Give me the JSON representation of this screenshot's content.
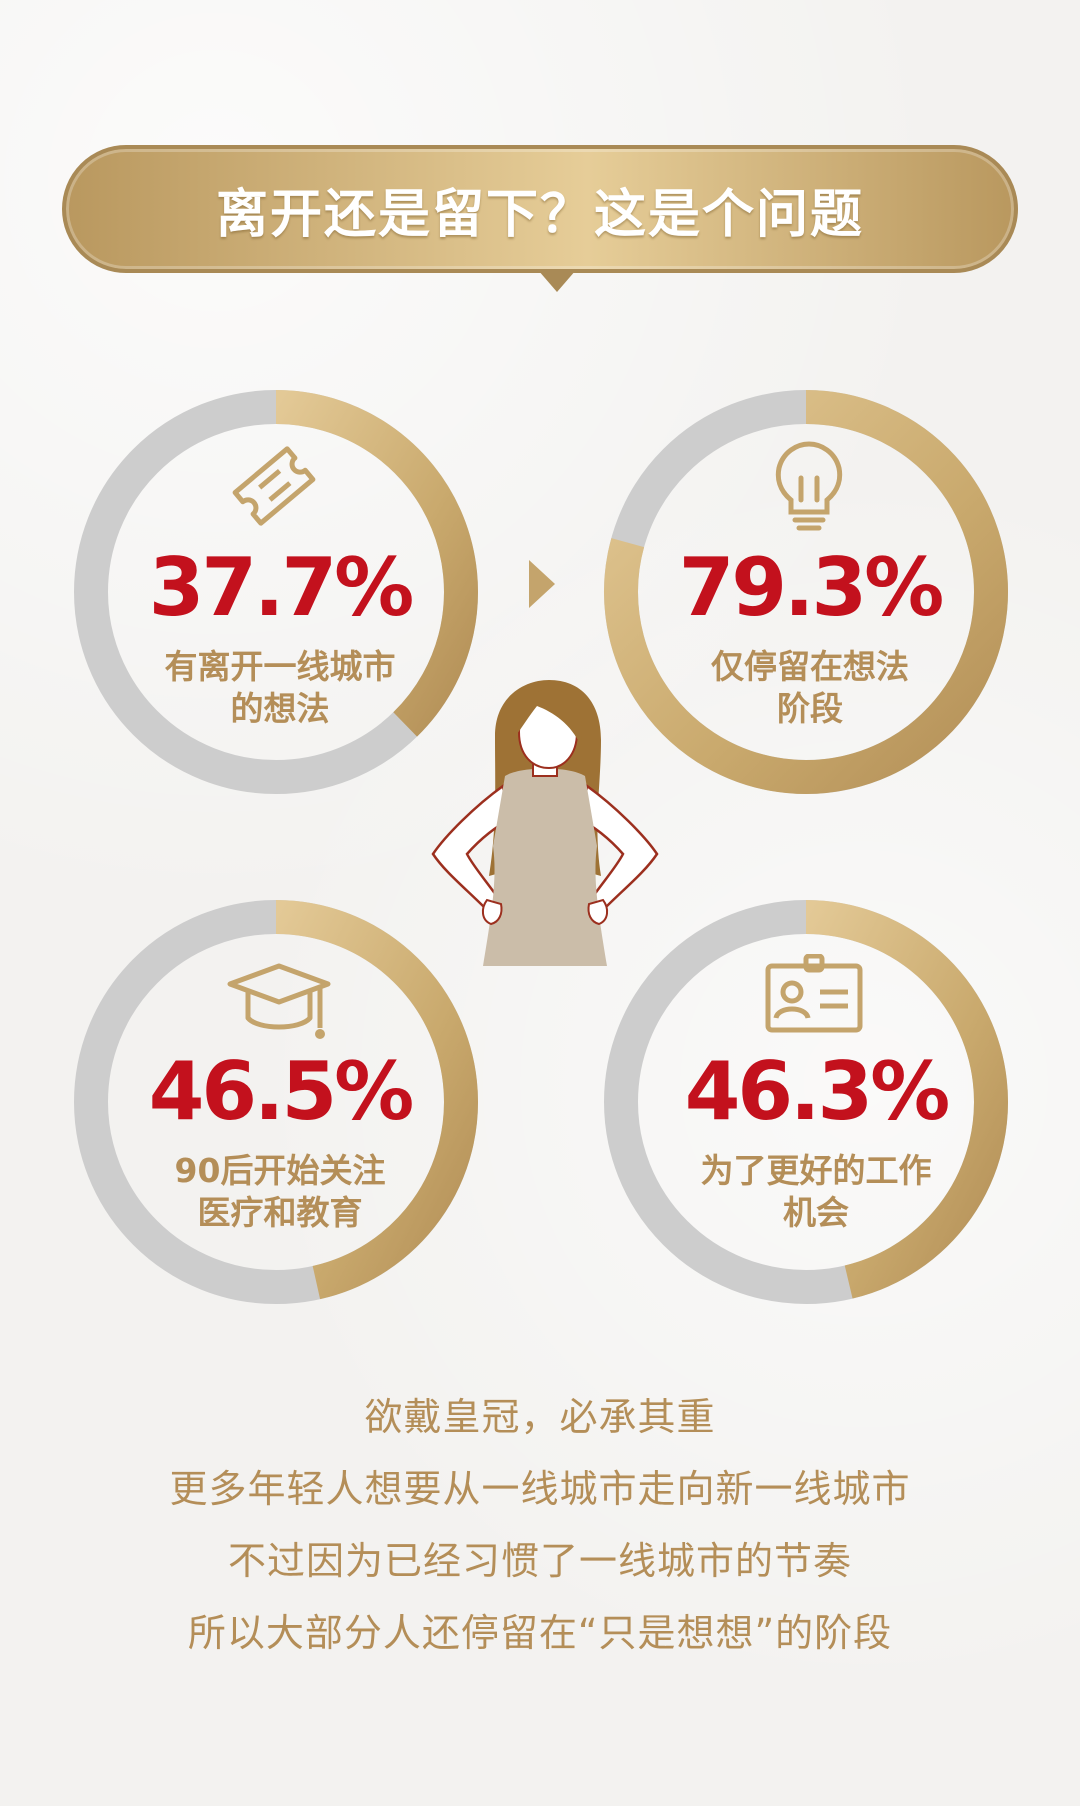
{
  "banner": {
    "title": "离开还是留下？这是个问题"
  },
  "colors": {
    "gold": "#c9ab73",
    "gold_dark": "#a98a56",
    "ring_gray": "#cdcdcd",
    "value_red": "#c3111d",
    "label_gold": "#b48e58"
  },
  "chart_data": [
    {
      "type": "pie",
      "style": "donut",
      "values": [
        37.7,
        62.3
      ],
      "value_label": "37.7%",
      "label": "有离开一线城市\n的想法",
      "icon": "ticket-icon"
    },
    {
      "type": "pie",
      "style": "donut",
      "values": [
        79.3,
        20.7
      ],
      "value_label": "79.3%",
      "label": "仅停留在想法\n阶段",
      "icon": "lightbulb-icon"
    },
    {
      "type": "pie",
      "style": "donut",
      "values": [
        46.5,
        53.5
      ],
      "value_label": "46.5%",
      "label": "90后开始关注\n医疗和教育",
      "icon": "graduation-cap-icon"
    },
    {
      "type": "pie",
      "style": "donut",
      "values": [
        46.3,
        53.7
      ],
      "value_label": "46.3%",
      "label": "为了更好的工作\n机会",
      "icon": "id-card-icon"
    }
  ],
  "captions": [
    "欲戴皇冠，必承其重",
    "更多年轻人想要从一线城市走向新一线城市",
    "不过因为已经习惯了一线城市的节奏",
    "所以大部分人还停留在“只是想想”的阶段"
  ]
}
